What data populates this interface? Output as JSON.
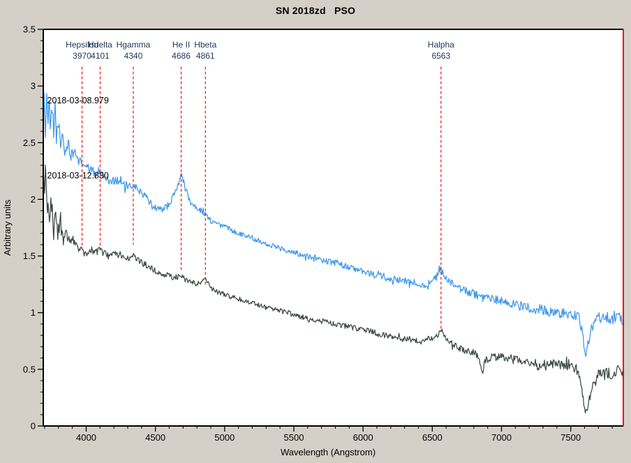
{
  "title": "SN 2018zd   PSO",
  "colors": {
    "background": "#d4d0c8",
    "plot_background": "#ffffff",
    "axis": "#000000",
    "right_border": "#ff0000",
    "tick_text": "#000000",
    "marker_line": "#e81212",
    "marker_label": "#203a56",
    "annotation_text": "#000000",
    "series_upper": "#3d97ec",
    "series_lower": "#3c4a43"
  },
  "chart_data": {
    "type": "line",
    "title": "SN 2018zd   PSO",
    "xlabel": "Wavelength (Angstrom)",
    "ylabel": "Arbitrary units",
    "xlim": [
      3690,
      7880
    ],
    "ylim": [
      0,
      3.5
    ],
    "grid": false,
    "legend": "none",
    "x_ticks": [
      {
        "value": 4000,
        "label": "4000"
      },
      {
        "value": 4500,
        "label": "4500"
      },
      {
        "value": 5000,
        "label": "5000"
      },
      {
        "value": 5500,
        "label": "5500"
      },
      {
        "value": 6000,
        "label": "6000"
      },
      {
        "value": 6500,
        "label": "6500"
      },
      {
        "value": 7000,
        "label": "7000"
      },
      {
        "value": 7500,
        "label": "7500"
      }
    ],
    "x_minor_step": 100,
    "y_ticks": [
      {
        "value": 0,
        "label": "0"
      },
      {
        "value": 0.5,
        "label": "0.5"
      },
      {
        "value": 1,
        "label": "1"
      },
      {
        "value": 1.5,
        "label": "1.5"
      },
      {
        "value": 2,
        "label": "2"
      },
      {
        "value": 2.5,
        "label": "2.5"
      },
      {
        "value": 3,
        "label": "3"
      },
      {
        "value": 3.5,
        "label": "3.5"
      }
    ],
    "y_minor_step": 0.1,
    "line_markers": [
      {
        "id": "hepsilon",
        "label": "Hepsilon",
        "wavelength_label": "3970",
        "wavelength": 3970,
        "line_top_value": 3.17,
        "line_bottom_value": 1.56
      },
      {
        "id": "hdelta",
        "label": "Hdelta",
        "wavelength_label": "4101",
        "wavelength": 4101,
        "line_top_value": 3.17,
        "line_bottom_value": 1.58
      },
      {
        "id": "hgamma",
        "label": "Hgamma",
        "wavelength_label": "4340",
        "wavelength": 4340,
        "line_top_value": 3.17,
        "line_bottom_value": 1.6
      },
      {
        "id": "heii",
        "label": "He II",
        "wavelength_label": "4686",
        "wavelength": 4686,
        "line_top_value": 3.17,
        "line_bottom_value": 1.36
      },
      {
        "id": "hbeta",
        "label": "Hbeta",
        "wavelength_label": "4861",
        "wavelength": 4861,
        "line_top_value": 3.17,
        "line_bottom_value": 1.24
      },
      {
        "id": "halpha",
        "label": "Halpha",
        "wavelength_label": "6563",
        "wavelength": 6563,
        "line_top_value": 3.17,
        "line_bottom_value": 0.84
      }
    ],
    "series": [
      {
        "name": "2018-03-08.979",
        "color": "#3d97ec",
        "label_anchor": {
          "x": 3718,
          "y": 2.87
        },
        "anchors": [
          [
            3690,
            2.6
          ],
          [
            3698,
            2.95
          ],
          [
            3706,
            2.55
          ],
          [
            3714,
            2.97
          ],
          [
            3722,
            2.62
          ],
          [
            3732,
            2.9
          ],
          [
            3742,
            2.55
          ],
          [
            3752,
            2.82
          ],
          [
            3764,
            2.55
          ],
          [
            3776,
            2.83
          ],
          [
            3788,
            2.48
          ],
          [
            3800,
            2.7
          ],
          [
            3815,
            2.45
          ],
          [
            3830,
            2.58
          ],
          [
            3848,
            2.4
          ],
          [
            3870,
            2.5
          ],
          [
            3890,
            2.38
          ],
          [
            3920,
            2.42
          ],
          [
            3950,
            2.33
          ],
          [
            3970,
            2.33
          ],
          [
            4000,
            2.28
          ],
          [
            4040,
            2.26
          ],
          [
            4070,
            2.22
          ],
          [
            4101,
            2.26
          ],
          [
            4130,
            2.2
          ],
          [
            4170,
            2.16
          ],
          [
            4210,
            2.17
          ],
          [
            4250,
            2.16
          ],
          [
            4290,
            2.1
          ],
          [
            4340,
            2.12
          ],
          [
            4380,
            2.08
          ],
          [
            4430,
            2.02
          ],
          [
            4480,
            1.94
          ],
          [
            4530,
            1.91
          ],
          [
            4580,
            1.93
          ],
          [
            4620,
            2.0
          ],
          [
            4660,
            2.12
          ],
          [
            4686,
            2.21
          ],
          [
            4705,
            2.16
          ],
          [
            4730,
            2.04
          ],
          [
            4760,
            1.96
          ],
          [
            4800,
            1.93
          ],
          [
            4861,
            1.87
          ],
          [
            4900,
            1.81
          ],
          [
            4950,
            1.78
          ],
          [
            5000,
            1.76
          ],
          [
            5080,
            1.71
          ],
          [
            5160,
            1.68
          ],
          [
            5240,
            1.64
          ],
          [
            5320,
            1.6
          ],
          [
            5400,
            1.57
          ],
          [
            5480,
            1.54
          ],
          [
            5560,
            1.51
          ],
          [
            5640,
            1.49
          ],
          [
            5720,
            1.46
          ],
          [
            5800,
            1.44
          ],
          [
            5880,
            1.41
          ],
          [
            5960,
            1.37
          ],
          [
            6040,
            1.35
          ],
          [
            6120,
            1.32
          ],
          [
            6200,
            1.3
          ],
          [
            6280,
            1.28
          ],
          [
            6360,
            1.27
          ],
          [
            6420,
            1.25
          ],
          [
            6480,
            1.26
          ],
          [
            6530,
            1.31
          ],
          [
            6563,
            1.38
          ],
          [
            6585,
            1.34
          ],
          [
            6620,
            1.27
          ],
          [
            6680,
            1.22
          ],
          [
            6740,
            1.19
          ],
          [
            6800,
            1.17
          ],
          [
            6860,
            1.12
          ],
          [
            6920,
            1.12
          ],
          [
            6980,
            1.11
          ],
          [
            7040,
            1.09
          ],
          [
            7100,
            1.07
          ],
          [
            7160,
            1.05
          ],
          [
            7220,
            1.04
          ],
          [
            7280,
            1.03
          ],
          [
            7340,
            1.01
          ],
          [
            7400,
            1.0
          ],
          [
            7460,
            0.99
          ],
          [
            7520,
            0.98
          ],
          [
            7560,
            0.96
          ],
          [
            7585,
            0.78
          ],
          [
            7605,
            0.62
          ],
          [
            7625,
            0.74
          ],
          [
            7650,
            0.86
          ],
          [
            7690,
            0.95
          ],
          [
            7740,
            0.97
          ],
          [
            7790,
            0.94
          ],
          [
            7840,
            0.97
          ],
          [
            7880,
            0.92
          ]
        ],
        "noise_profile": [
          [
            3690,
            0.08
          ],
          [
            3800,
            0.08
          ],
          [
            3880,
            0.05
          ],
          [
            3960,
            0.04
          ],
          [
            4200,
            0.035
          ],
          [
            4700,
            0.028
          ],
          [
            5000,
            0.022
          ],
          [
            5600,
            0.025
          ],
          [
            6000,
            0.03
          ],
          [
            6500,
            0.035
          ],
          [
            7000,
            0.04
          ],
          [
            7400,
            0.045
          ],
          [
            7880,
            0.05
          ]
        ]
      },
      {
        "name": "2018-03-12.830",
        "color": "#3c4a43",
        "label_anchor": {
          "x": 3718,
          "y": 2.21
        },
        "anchors": [
          [
            3690,
            2.3
          ],
          [
            3698,
            2.02
          ],
          [
            3706,
            2.25
          ],
          [
            3714,
            1.85
          ],
          [
            3724,
            2.1
          ],
          [
            3736,
            1.78
          ],
          [
            3748,
            1.98
          ],
          [
            3762,
            1.72
          ],
          [
            3776,
            1.88
          ],
          [
            3792,
            1.66
          ],
          [
            3810,
            1.8
          ],
          [
            3830,
            1.63
          ],
          [
            3855,
            1.73
          ],
          [
            3885,
            1.6
          ],
          [
            3915,
            1.65
          ],
          [
            3945,
            1.57
          ],
          [
            3970,
            1.54
          ],
          [
            4000,
            1.51
          ],
          [
            4040,
            1.55
          ],
          [
            4070,
            1.53
          ],
          [
            4101,
            1.56
          ],
          [
            4130,
            1.52
          ],
          [
            4170,
            1.5
          ],
          [
            4210,
            1.52
          ],
          [
            4250,
            1.51
          ],
          [
            4290,
            1.48
          ],
          [
            4340,
            1.5
          ],
          [
            4380,
            1.46
          ],
          [
            4430,
            1.42
          ],
          [
            4480,
            1.38
          ],
          [
            4530,
            1.35
          ],
          [
            4580,
            1.33
          ],
          [
            4630,
            1.31
          ],
          [
            4686,
            1.32
          ],
          [
            4720,
            1.29
          ],
          [
            4760,
            1.27
          ],
          [
            4800,
            1.25
          ],
          [
            4830,
            1.27
          ],
          [
            4861,
            1.3
          ],
          [
            4885,
            1.25
          ],
          [
            4910,
            1.21
          ],
          [
            4950,
            1.18
          ],
          [
            5000,
            1.16
          ],
          [
            5080,
            1.13
          ],
          [
            5160,
            1.1
          ],
          [
            5240,
            1.07
          ],
          [
            5320,
            1.04
          ],
          [
            5400,
            1.02
          ],
          [
            5480,
            0.99
          ],
          [
            5560,
            0.96
          ],
          [
            5640,
            0.94
          ],
          [
            5720,
            0.92
          ],
          [
            5800,
            0.9
          ],
          [
            5880,
            0.88
          ],
          [
            5960,
            0.86
          ],
          [
            6040,
            0.84
          ],
          [
            6120,
            0.81
          ],
          [
            6200,
            0.79
          ],
          [
            6280,
            0.77
          ],
          [
            6360,
            0.76
          ],
          [
            6420,
            0.74
          ],
          [
            6480,
            0.77
          ],
          [
            6530,
            0.8
          ],
          [
            6563,
            0.84
          ],
          [
            6590,
            0.78
          ],
          [
            6640,
            0.73
          ],
          [
            6690,
            0.69
          ],
          [
            6740,
            0.67
          ],
          [
            6790,
            0.65
          ],
          [
            6830,
            0.62
          ],
          [
            6860,
            0.45
          ],
          [
            6880,
            0.58
          ],
          [
            6930,
            0.61
          ],
          [
            6980,
            0.61
          ],
          [
            7040,
            0.6
          ],
          [
            7100,
            0.59
          ],
          [
            7160,
            0.58
          ],
          [
            7220,
            0.56
          ],
          [
            7260,
            0.51
          ],
          [
            7300,
            0.56
          ],
          [
            7360,
            0.55
          ],
          [
            7420,
            0.54
          ],
          [
            7480,
            0.53
          ],
          [
            7540,
            0.5
          ],
          [
            7570,
            0.42
          ],
          [
            7595,
            0.18
          ],
          [
            7615,
            0.12
          ],
          [
            7635,
            0.24
          ],
          [
            7660,
            0.36
          ],
          [
            7690,
            0.46
          ],
          [
            7740,
            0.5
          ],
          [
            7790,
            0.45
          ],
          [
            7840,
            0.5
          ],
          [
            7880,
            0.38
          ]
        ],
        "noise_profile": [
          [
            3690,
            0.14
          ],
          [
            3800,
            0.1
          ],
          [
            3880,
            0.055
          ],
          [
            3960,
            0.035
          ],
          [
            4200,
            0.03
          ],
          [
            4700,
            0.025
          ],
          [
            5000,
            0.022
          ],
          [
            5600,
            0.024
          ],
          [
            6000,
            0.025
          ],
          [
            6500,
            0.03
          ],
          [
            7000,
            0.035
          ],
          [
            7400,
            0.04
          ],
          [
            7880,
            0.05
          ]
        ]
      }
    ]
  }
}
